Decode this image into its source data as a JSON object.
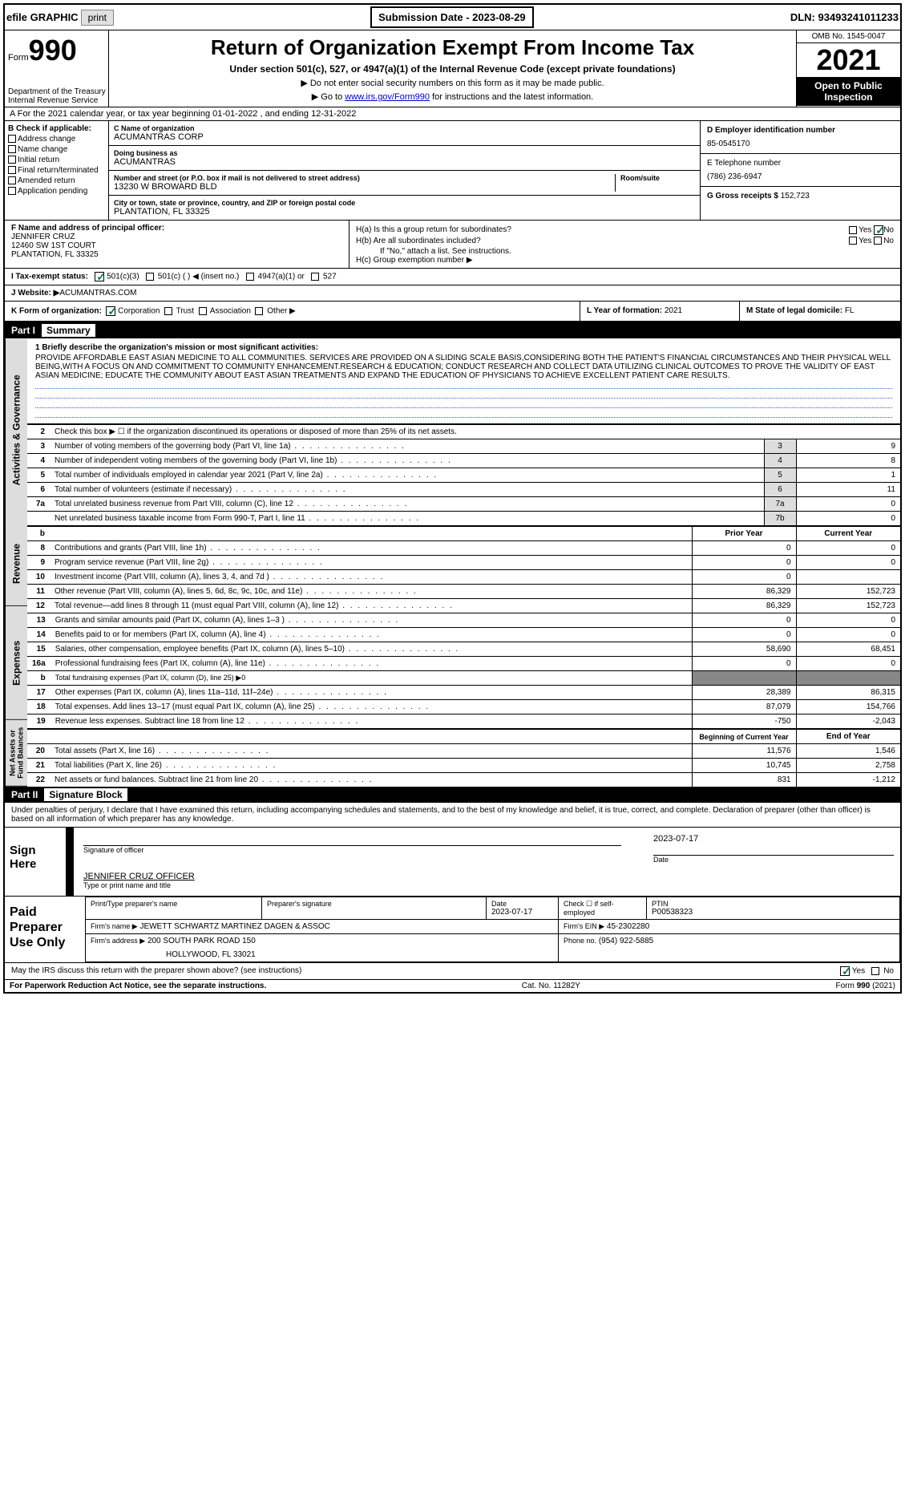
{
  "topbar": {
    "efile": "efile GRAPHIC",
    "print": "print",
    "sub_date_label": "Submission Date - 2023-08-29",
    "dln": "DLN: 93493241011233"
  },
  "header": {
    "form_word": "Form",
    "form_num": "990",
    "dept": "Department of the Treasury\nInternal Revenue Service",
    "title": "Return of Organization Exempt From Income Tax",
    "subtitle": "Under section 501(c), 527, or 4947(a)(1) of the Internal Revenue Code (except private foundations)",
    "instr1": "▶ Do not enter social security numbers on this form as it may be made public.",
    "instr2_pre": "▶ Go to ",
    "instr2_link": "www.irs.gov/Form990",
    "instr2_post": " for instructions and the latest information.",
    "omb": "OMB No. 1545-0047",
    "year": "2021",
    "open": "Open to Public Inspection"
  },
  "line_a": "A For the 2021 calendar year, or tax year beginning 01-01-2022   , and ending 12-31-2022",
  "col_b": {
    "hdr": "B Check if applicable:",
    "items": [
      "Address change",
      "Name change",
      "Initial return",
      "Final return/terminated",
      "Amended return",
      "Application pending"
    ]
  },
  "col_c": {
    "name_lbl": "C Name of organization",
    "name": "ACUMANTRAS CORP",
    "dba_lbl": "Doing business as",
    "dba": "ACUMANTRAS",
    "addr_lbl": "Number and street (or P.O. box if mail is not delivered to street address)",
    "addr": "13230 W BROWARD BLD",
    "room_lbl": "Room/suite",
    "city_lbl": "City or town, state or province, country, and ZIP or foreign postal code",
    "city": "PLANTATION, FL  33325"
  },
  "col_de": {
    "d_lbl": "D Employer identification number",
    "d_val": "85-0545170",
    "e_lbl": "E Telephone number",
    "e_val": "(786) 236-6947",
    "g_lbl": "G Gross receipts $",
    "g_val": "152,723"
  },
  "row_f": {
    "lbl": "F  Name and address of principal officer:",
    "name": "JENNIFER CRUZ",
    "addr1": "12460 SW 1ST COURT",
    "addr2": "PLANTATION, FL  33325"
  },
  "row_h": {
    "ha": "H(a)  Is this a group return for subordinates?",
    "hb": "H(b)  Are all subordinates included?",
    "hb_note": "If \"No,\" attach a list. See instructions.",
    "hc": "H(c)  Group exemption number ▶",
    "yes": "Yes",
    "no": "No"
  },
  "row_i": {
    "lbl": "I   Tax-exempt status:",
    "opts": [
      "501(c)(3)",
      "501(c) (   ) ◀ (insert no.)",
      "4947(a)(1) or",
      "527"
    ]
  },
  "row_j": {
    "lbl": "J  Website: ▶",
    "val": " ACUMANTRAS.COM"
  },
  "row_k": {
    "lbl": "K Form of organization:",
    "opts": [
      "Corporation",
      "Trust",
      "Association",
      "Other ▶"
    ]
  },
  "row_l": {
    "lbl": "L Year of formation:",
    "val": "2021"
  },
  "row_m": {
    "lbl": "M State of legal domicile:",
    "val": "FL"
  },
  "part1": {
    "label": "Part I",
    "title": "Summary"
  },
  "vtabs": {
    "ag": "Activities & Governance",
    "rev": "Revenue",
    "exp": "Expenses",
    "nab": "Net Assets or Fund Balances"
  },
  "mission": {
    "lbl": "1   Briefly describe the organization's mission or most significant activities:",
    "text": "PROVIDE AFFORDABLE EAST ASIAN MEDICINE TO ALL COMMUNITIES. SERVICES ARE PROVIDED ON A SLIDING SCALE BASIS,CONSIDERING BOTH THE PATIENT'S FINANCIAL CIRCUMSTANCES AND THEIR PHYSICAL WELL BEING,WITH A FOCUS ON AND COMMITMENT TO COMMUNITY ENHANCEMENT.RESEARCH & EDUCATION; CONDUCT RESEARCH AND COLLECT DATA UTILIZING CLINICAL OUTCOMES TO PROVE THE VALIDITY OF EAST ASIAN MEDICINE; EDUCATE THE COMMUNITY ABOUT EAST ASIAN TREATMENTS AND EXPAND THE EDUCATION OF PHYSICIANS TO ACHIEVE EXCELLENT PATIENT CARE RESULTS."
  },
  "lines_ag": [
    {
      "n": "2",
      "t": "Check this box ▶ ☐ if the organization discontinued its operations or disposed of more than 25% of its net assets."
    },
    {
      "n": "3",
      "t": "Number of voting members of the governing body (Part VI, line 1a)",
      "box": "3",
      "v": "9"
    },
    {
      "n": "4",
      "t": "Number of independent voting members of the governing body (Part VI, line 1b)",
      "box": "4",
      "v": "8"
    },
    {
      "n": "5",
      "t": "Total number of individuals employed in calendar year 2021 (Part V, line 2a)",
      "box": "5",
      "v": "1"
    },
    {
      "n": "6",
      "t": "Total number of volunteers (estimate if necessary)",
      "box": "6",
      "v": "11"
    },
    {
      "n": "7a",
      "t": "Total unrelated business revenue from Part VIII, column (C), line 12",
      "box": "7a",
      "v": "0"
    },
    {
      "n": "",
      "t": "Net unrelated business taxable income from Form 990-T, Part I, line 11",
      "box": "7b",
      "v": "0"
    }
  ],
  "col_hdrs": {
    "prior": "Prior Year",
    "curr": "Current Year"
  },
  "lines_rev": [
    {
      "n": "8",
      "t": "Contributions and grants (Part VIII, line 1h)",
      "p": "0",
      "c": "0"
    },
    {
      "n": "9",
      "t": "Program service revenue (Part VIII, line 2g)",
      "p": "0",
      "c": "0"
    },
    {
      "n": "10",
      "t": "Investment income (Part VIII, column (A), lines 3, 4, and 7d )",
      "p": "0",
      "c": ""
    },
    {
      "n": "11",
      "t": "Other revenue (Part VIII, column (A), lines 5, 6d, 8c, 9c, 10c, and 11e)",
      "p": "86,329",
      "c": "152,723"
    },
    {
      "n": "12",
      "t": "Total revenue—add lines 8 through 11 (must equal Part VIII, column (A), line 12)",
      "p": "86,329",
      "c": "152,723"
    }
  ],
  "lines_exp": [
    {
      "n": "13",
      "t": "Grants and similar amounts paid (Part IX, column (A), lines 1–3 )",
      "p": "0",
      "c": "0"
    },
    {
      "n": "14",
      "t": "Benefits paid to or for members (Part IX, column (A), line 4)",
      "p": "0",
      "c": "0"
    },
    {
      "n": "15",
      "t": "Salaries, other compensation, employee benefits (Part IX, column (A), lines 5–10)",
      "p": "58,690",
      "c": "68,451"
    },
    {
      "n": "16a",
      "t": "Professional fundraising fees (Part IX, column (A), line 11e)",
      "p": "0",
      "c": "0"
    },
    {
      "n": "b",
      "t": "Total fundraising expenses (Part IX, column (D), line 25) ▶0",
      "shaded": true
    },
    {
      "n": "17",
      "t": "Other expenses (Part IX, column (A), lines 11a–11d, 11f–24e)",
      "p": "28,389",
      "c": "86,315"
    },
    {
      "n": "18",
      "t": "Total expenses. Add lines 13–17 (must equal Part IX, column (A), line 25)",
      "p": "87,079",
      "c": "154,766"
    },
    {
      "n": "19",
      "t": "Revenue less expenses. Subtract line 18 from line 12",
      "p": "-750",
      "c": "-2,043"
    }
  ],
  "nab_hdrs": {
    "beg": "Beginning of Current Year",
    "end": "End of Year"
  },
  "lines_nab": [
    {
      "n": "20",
      "t": "Total assets (Part X, line 16)",
      "p": "11,576",
      "c": "1,546"
    },
    {
      "n": "21",
      "t": "Total liabilities (Part X, line 26)",
      "p": "10,745",
      "c": "2,758"
    },
    {
      "n": "22",
      "t": "Net assets or fund balances. Subtract line 21 from line 20",
      "p": "831",
      "c": "-1,212"
    }
  ],
  "part2": {
    "label": "Part II",
    "title": "Signature Block"
  },
  "perjury": "Under penalties of perjury, I declare that I have examined this return, including accompanying schedules and statements, and to the best of my knowledge and belief, it is true, correct, and complete. Declaration of preparer (other than officer) is based on all information of which preparer has any knowledge.",
  "sign": {
    "lbl": "Sign Here",
    "sig_lbl": "Signature of officer",
    "date": "2023-07-17",
    "date_lbl": "Date",
    "name": "JENNIFER CRUZ  OFFICER",
    "name_lbl": "Type or print name and title"
  },
  "prep": {
    "lbl": "Paid Preparer Use Only",
    "r1": {
      "c1": "Print/Type preparer's name",
      "c2": "Preparer's signature",
      "c3l": "Date",
      "c3v": "2023-07-17",
      "c4l": "Check ☐ if self-employed",
      "c5l": "PTIN",
      "c5v": "P00538323"
    },
    "r2": {
      "lbl": "Firm's name    ▶",
      "val": "JEWETT SCHWARTZ MARTINEZ DAGEN & ASSOC",
      "einl": "Firm's EIN ▶",
      "einv": "45-2302280"
    },
    "r3": {
      "lbl": "Firm's address ▶",
      "val": "200 SOUTH PARK ROAD 150",
      "phl": "Phone no.",
      "phv": "(954) 922-5885"
    },
    "r3b": "HOLLYWOOD, FL  33021"
  },
  "discuss": {
    "t": "May the IRS discuss this return with the preparer shown above? (see instructions)",
    "yes": "Yes",
    "no": "No"
  },
  "footer": {
    "l": "For Paperwork Reduction Act Notice, see the separate instructions.",
    "c": "Cat. No. 11282Y",
    "r": "Form 990 (2021)"
  }
}
